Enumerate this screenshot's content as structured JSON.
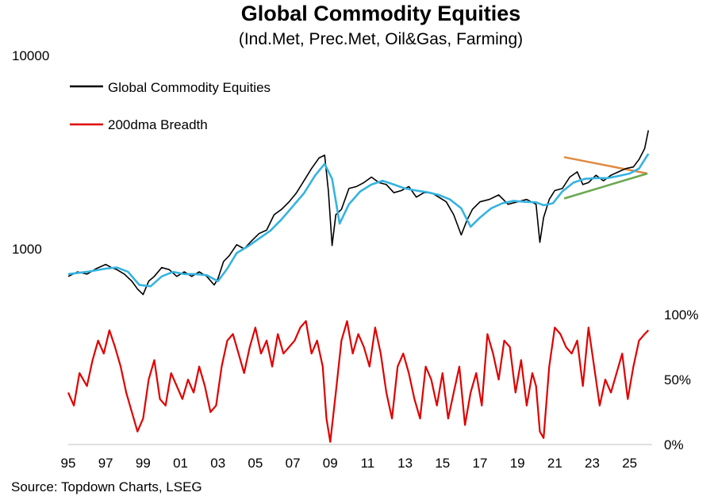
{
  "chart": {
    "title": "Global Commodity Equities",
    "subtitle": "(Ind.Met, Prec.Met, Oil&Gas, Farming)",
    "source": "Source: Topdown Charts, LSEG"
  },
  "colors": {
    "index": "#000000",
    "ma": "#35b3e0",
    "breadth": "#e00000",
    "trend_upper": "#e08a40",
    "trend_lower": "#6aa84f"
  },
  "chart_data": [
    {
      "type": "line",
      "scale": "log",
      "ylim": [
        500,
        10000
      ],
      "xlim": [
        1995,
        2026.2
      ],
      "y_ticks": [
        {
          "value": 10000,
          "label": "10000"
        },
        {
          "value": 1000,
          "label": "1000"
        }
      ],
      "series": [
        {
          "name": "Global Commodity Equities",
          "color": "#000000",
          "x": [
            1995.0,
            1995.5,
            1996.0,
            1996.5,
            1997.0,
            1997.3,
            1997.6,
            1998.0,
            1998.4,
            1998.7,
            1999.0,
            1999.3,
            1999.6,
            2000.0,
            2000.4,
            2000.8,
            2001.2,
            2001.6,
            2002.0,
            2002.4,
            2002.8,
            2003.0,
            2003.3,
            2003.6,
            2004.0,
            2004.4,
            2004.8,
            2005.2,
            2005.6,
            2006.0,
            2006.4,
            2006.8,
            2007.2,
            2007.6,
            2008.0,
            2008.4,
            2008.7,
            2008.9,
            2009.1,
            2009.3,
            2009.6,
            2010.0,
            2010.4,
            2010.8,
            2011.2,
            2011.6,
            2012.0,
            2012.4,
            2012.8,
            2013.2,
            2013.6,
            2014.0,
            2014.4,
            2014.8,
            2015.2,
            2015.6,
            2016.0,
            2016.3,
            2016.6,
            2017.0,
            2017.5,
            2018.0,
            2018.5,
            2019.0,
            2019.5,
            2020.0,
            2020.2,
            2020.4,
            2020.7,
            2021.0,
            2021.4,
            2021.8,
            2022.2,
            2022.5,
            2022.8,
            2023.2,
            2023.6,
            2024.0,
            2024.4,
            2024.8,
            2025.2,
            2025.5,
            2025.8,
            2026.0
          ],
          "y": [
            720,
            760,
            740,
            790,
            830,
            800,
            780,
            740,
            680,
            620,
            580,
            680,
            720,
            800,
            780,
            720,
            760,
            720,
            760,
            720,
            650,
            700,
            860,
            920,
            1050,
            1000,
            1100,
            1200,
            1250,
            1500,
            1600,
            1750,
            1950,
            2250,
            2600,
            2950,
            3050,
            2000,
            1040,
            1500,
            1600,
            2050,
            2100,
            2200,
            2350,
            2200,
            2150,
            1950,
            2000,
            2100,
            1850,
            1950,
            1950,
            1850,
            1750,
            1500,
            1180,
            1400,
            1600,
            1750,
            1800,
            1900,
            1700,
            1750,
            1800,
            1700,
            1080,
            1450,
            1800,
            2000,
            2050,
            2350,
            2500,
            2150,
            2200,
            2400,
            2250,
            2400,
            2500,
            2600,
            2650,
            2900,
            3300,
            4100
          ]
        },
        {
          "name": "",
          "color": "#35b3e0",
          "x": [
            1995.0,
            1996.0,
            1997.0,
            1997.6,
            1998.2,
            1998.8,
            1999.4,
            2000.0,
            2000.6,
            2001.2,
            2001.8,
            2002.4,
            2003.0,
            2003.5,
            2004.0,
            2004.6,
            2005.2,
            2005.8,
            2006.4,
            2007.0,
            2007.6,
            2008.2,
            2008.7,
            2009.1,
            2009.5,
            2010.0,
            2010.6,
            2011.2,
            2011.8,
            2012.4,
            2013.0,
            2013.6,
            2014.2,
            2014.8,
            2015.4,
            2016.0,
            2016.5,
            2017.0,
            2017.6,
            2018.2,
            2018.8,
            2019.4,
            2020.0,
            2020.4,
            2020.9,
            2021.4,
            2022.0,
            2022.6,
            2023.2,
            2023.8,
            2024.4,
            2025.0,
            2025.5,
            2026.0
          ],
          "y": [
            740,
            760,
            790,
            800,
            760,
            650,
            640,
            720,
            760,
            740,
            740,
            730,
            680,
            790,
            950,
            1030,
            1130,
            1240,
            1420,
            1660,
            1940,
            2400,
            2750,
            2300,
            1350,
            1700,
            1980,
            2150,
            2250,
            2150,
            2050,
            2000,
            1960,
            1900,
            1800,
            1620,
            1300,
            1450,
            1620,
            1720,
            1770,
            1750,
            1740,
            1680,
            1720,
            1980,
            2200,
            2300,
            2320,
            2320,
            2380,
            2450,
            2600,
            3100
          ]
        }
      ],
      "trendlines": [
        {
          "name": "upper",
          "color": "#e08a40",
          "x": [
            2021.5,
            2025.95
          ],
          "y": [
            2980,
            2450
          ]
        },
        {
          "name": "lower",
          "color": "#6aa84f",
          "x": [
            2021.5,
            2025.95
          ],
          "y": [
            1820,
            2450
          ]
        }
      ]
    },
    {
      "type": "line",
      "ylim": [
        0,
        100
      ],
      "y_ticks": [
        {
          "value": 100,
          "label": "100%"
        },
        {
          "value": 50,
          "label": "50%"
        },
        {
          "value": 0,
          "label": "0%"
        }
      ],
      "x_ticks": [
        {
          "value": 1995,
          "label": "95"
        },
        {
          "value": 1997,
          "label": "97"
        },
        {
          "value": 1999,
          "label": "99"
        },
        {
          "value": 2001,
          "label": "01"
        },
        {
          "value": 2003,
          "label": "03"
        },
        {
          "value": 2005,
          "label": "05"
        },
        {
          "value": 2007,
          "label": "07"
        },
        {
          "value": 2009,
          "label": "09"
        },
        {
          "value": 2011,
          "label": "11"
        },
        {
          "value": 2013,
          "label": "13"
        },
        {
          "value": 2015,
          "label": "15"
        },
        {
          "value": 2017,
          "label": "17"
        },
        {
          "value": 2019,
          "label": "19"
        },
        {
          "value": 2021,
          "label": "21"
        },
        {
          "value": 2023,
          "label": "23"
        },
        {
          "value": 2025,
          "label": "25"
        }
      ],
      "series": [
        {
          "name": "200dma Breadth",
          "color": "#e00000",
          "x": [
            1995.0,
            1995.3,
            1995.6,
            1996.0,
            1996.3,
            1996.6,
            1996.9,
            1997.2,
            1997.5,
            1997.8,
            1998.1,
            1998.4,
            1998.7,
            1999.0,
            1999.3,
            1999.6,
            1999.9,
            2000.2,
            2000.5,
            2000.8,
            2001.1,
            2001.4,
            2001.7,
            2002.0,
            2002.3,
            2002.6,
            2002.9,
            2003.2,
            2003.5,
            2003.8,
            2004.1,
            2004.4,
            2004.7,
            2005.0,
            2005.3,
            2005.6,
            2005.9,
            2006.2,
            2006.5,
            2006.8,
            2007.1,
            2007.4,
            2007.7,
            2008.0,
            2008.3,
            2008.6,
            2008.8,
            2009.0,
            2009.3,
            2009.6,
            2009.9,
            2010.2,
            2010.5,
            2010.8,
            2011.1,
            2011.4,
            2011.7,
            2012.0,
            2012.3,
            2012.6,
            2012.9,
            2013.2,
            2013.5,
            2013.8,
            2014.1,
            2014.4,
            2014.7,
            2015.0,
            2015.3,
            2015.6,
            2015.9,
            2016.2,
            2016.5,
            2016.8,
            2017.1,
            2017.4,
            2017.7,
            2018.0,
            2018.3,
            2018.6,
            2018.9,
            2019.2,
            2019.5,
            2019.8,
            2020.0,
            2020.2,
            2020.4,
            2020.7,
            2021.0,
            2021.3,
            2021.6,
            2021.9,
            2022.2,
            2022.5,
            2022.8,
            2023.1,
            2023.4,
            2023.7,
            2024.0,
            2024.3,
            2024.6,
            2024.9,
            2025.2,
            2025.5,
            2025.8,
            2026.0
          ],
          "y": [
            40,
            30,
            55,
            45,
            65,
            80,
            70,
            88,
            75,
            60,
            40,
            25,
            10,
            20,
            50,
            65,
            35,
            30,
            55,
            45,
            35,
            50,
            40,
            60,
            45,
            25,
            30,
            60,
            80,
            85,
            70,
            55,
            75,
            90,
            70,
            80,
            60,
            85,
            70,
            75,
            80,
            90,
            95,
            70,
            80,
            60,
            20,
            2,
            40,
            80,
            95,
            70,
            85,
            75,
            60,
            90,
            70,
            40,
            20,
            60,
            70,
            55,
            35,
            20,
            60,
            50,
            30,
            55,
            20,
            40,
            60,
            15,
            40,
            55,
            30,
            85,
            70,
            50,
            80,
            75,
            40,
            65,
            30,
            55,
            45,
            10,
            5,
            60,
            90,
            85,
            75,
            70,
            80,
            45,
            90,
            60,
            30,
            50,
            40,
            55,
            70,
            35,
            60,
            80,
            85,
            88
          ]
        }
      ]
    }
  ]
}
